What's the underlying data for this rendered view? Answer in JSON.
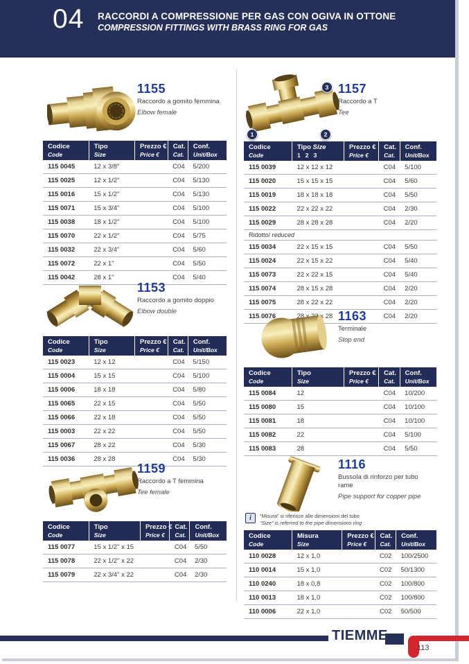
{
  "colors": {
    "navy": "#262f58",
    "product_number_blue": "#1e3c96",
    "logo_red": "#d2252d",
    "brass": "#cfae58"
  },
  "header": {
    "chapter_number": "04",
    "title": "RACCORDI A COMPRESSIONE PER GAS CON OGIVA IN OTTONE",
    "subtitle": "COMPRESSION FITTINGS WITH BRASS RING FOR GAS"
  },
  "sections": {
    "s1155": {
      "number": "1155",
      "name_it": "Raccordo a gomito femmina",
      "name_en": "Elbow female",
      "head": [
        {
          "l1": "Codice",
          "l2": "Code"
        },
        {
          "l1": "Tipo",
          "l2": "Size"
        },
        {
          "l1": "Prezzo €",
          "l2": "Price €"
        },
        {
          "l1": "Cat.",
          "l2": "Cat."
        },
        {
          "l1": "Conf.",
          "l2": "Unit/Box"
        }
      ],
      "rows": [
        [
          "115 0045",
          "12 x 3/8\"",
          "",
          "C04",
          "5/200"
        ],
        [
          "115 0025",
          "12 x 1/2\"",
          "",
          "C04",
          "5/130"
        ],
        [
          "115 0016",
          "15 x 1/2\"",
          "",
          "C04",
          "5/130"
        ],
        [
          "115 0071",
          "15 x 3/4\"",
          "",
          "C04",
          "5/100"
        ],
        [
          "115 0038",
          "18 x 1/2\"",
          "",
          "C04",
          "5/100"
        ],
        [
          "115 0070",
          "22 x 1/2\"",
          "",
          "C04",
          "5/75"
        ],
        [
          "115 0032",
          "22 x 3/4\"",
          "",
          "C04",
          "5/60"
        ],
        [
          "115 0072",
          "22 x 1\"",
          "",
          "C04",
          "5/50"
        ],
        [
          "115 0042",
          "28 x 1\"",
          "",
          "C04",
          "5/40"
        ]
      ]
    },
    "s1157": {
      "number": "1157",
      "name_it": "Raccordo a T",
      "name_en": "Tee",
      "callouts": [
        "1",
        "2",
        "3"
      ],
      "head": [
        {
          "l1": "Codice",
          "l2": "Code"
        },
        {
          "l1": "Tipo",
          "l1i": "Size",
          "l2": "1   2   3",
          "l2b": true
        },
        {
          "l1": "Prezzo €",
          "l2": "Price €"
        },
        {
          "l1": "Cat.",
          "l2": "Cat."
        },
        {
          "l1": "Conf.",
          "l2": "Unit/Box"
        }
      ],
      "rows": [
        [
          "115 0039",
          "12 x 12 x 12",
          "",
          "C04",
          "5/100"
        ],
        [
          "115 0020",
          "15 x 15 x 15",
          "",
          "C04",
          "5/60"
        ],
        [
          "115 0019",
          "18 x 18 x 18",
          "",
          "C04",
          "5/50"
        ],
        [
          "115 0022",
          "22 x 22 x 22",
          "",
          "C04",
          "2/30"
        ],
        [
          "115 0029",
          "28 x 28 x 28",
          "",
          "C04",
          "2/20"
        ],
        {
          "label": "Ridotto/",
          "label_i": "reduced"
        },
        [
          "115 0034",
          "22 x 15 x 15",
          "",
          "C04",
          "5/50"
        ],
        [
          "115 0024",
          "22 x 15 x 22",
          "",
          "C04",
          "5/40"
        ],
        [
          "115 0073",
          "22 x 22 x 15",
          "",
          "C04",
          "5/40"
        ],
        [
          "115 0074",
          "28 x 15 x 28",
          "",
          "C04",
          "2/20"
        ],
        [
          "115 0075",
          "28 x 22 x 22",
          "",
          "C04",
          "2/20"
        ],
        [
          "115 0076",
          "28 x 22 x 28",
          "",
          "C04",
          "2/20"
        ]
      ]
    },
    "s1153": {
      "number": "1153",
      "name_it": "Raccordo a gomito doppio",
      "name_en": "Elbow double",
      "head": [
        {
          "l1": "Codice",
          "l2": "Code"
        },
        {
          "l1": "Tipo",
          "l2": "Size"
        },
        {
          "l1": "Prezzo €",
          "l2": "Price €"
        },
        {
          "l1": "Cat.",
          "l2": "Cat."
        },
        {
          "l1": "Conf.",
          "l2": "Unit/Box"
        }
      ],
      "rows": [
        [
          "115 0023",
          "12 x 12",
          "",
          "C04",
          "5/150"
        ],
        [
          "115 0004",
          "15 x 15",
          "",
          "C04",
          "5/100"
        ],
        [
          "115 0006",
          "18 x 18",
          "",
          "C04",
          "5/80"
        ],
        [
          "115 0065",
          "22 x 15",
          "",
          "C04",
          "5/50"
        ],
        [
          "115 0066",
          "22 x 18",
          "",
          "C04",
          "5/50"
        ],
        [
          "115 0003",
          "22 x 22",
          "",
          "C04",
          "5/50"
        ],
        [
          "115 0067",
          "28 x 22",
          "",
          "C04",
          "5/30"
        ],
        [
          "115 0036",
          "28 x 28",
          "",
          "C04",
          "5/30"
        ]
      ]
    },
    "s1163": {
      "number": "1163",
      "name_it": "Terminale",
      "name_en": "Stop end",
      "head": [
        {
          "l1": "Codice",
          "l2": "Code"
        },
        {
          "l1": "Tipo",
          "l2": "Size"
        },
        {
          "l1": "Prezzo €",
          "l2": "Price €"
        },
        {
          "l1": "Cat.",
          "l2": "Cat."
        },
        {
          "l1": "Conf.",
          "l2": "Unit/Box"
        }
      ],
      "rows": [
        [
          "115 0084",
          "12",
          "",
          "C04",
          "10/200"
        ],
        [
          "115 0080",
          "15",
          "",
          "C04",
          "10/100"
        ],
        [
          "115 0081",
          "18",
          "",
          "C04",
          "10/100"
        ],
        [
          "115 0082",
          "22",
          "",
          "C04",
          "5/100"
        ],
        [
          "115 0083",
          "28",
          "",
          "C04",
          "5/50"
        ]
      ]
    },
    "s1159": {
      "number": "1159",
      "name_it": "Raccordo a T femmina",
      "name_en": "Tee female",
      "head": [
        {
          "l1": "Codice",
          "l2": "Code"
        },
        {
          "l1": "Tipo",
          "l2": "Size"
        },
        {
          "l1": "Prezzo €",
          "l2": "Price €"
        },
        {
          "l1": "Cat.",
          "l2": "Cat."
        },
        {
          "l1": "Conf.",
          "l2": "Unit/Box"
        }
      ],
      "rows": [
        [
          "115 0077",
          "15 x 1/2\" x 15",
          "",
          "C04",
          "5/50"
        ],
        [
          "115 0078",
          "22 x 1/2\" x 22",
          "",
          "C04",
          "2/30"
        ],
        [
          "115 0079",
          "22 x 3/4\" x 22",
          "",
          "C04",
          "2/30"
        ]
      ]
    },
    "s1116": {
      "number": "1116",
      "name_it": "Bussola di rinforzo per tubo rame",
      "name_en": "Pipe support for copper pipe",
      "note_it": "“Misura” si riferisce alle dimensioni del tubo",
      "note_en": "“Size” is referred to the pipe dimensions ring",
      "info_icon": "i",
      "head": [
        {
          "l1": "Codice",
          "l2": "Code"
        },
        {
          "l1": "Misura",
          "l2": "Size"
        },
        {
          "l1": "Prezzo €",
          "l2": "Price €"
        },
        {
          "l1": "Cat.",
          "l2": "Cat."
        },
        {
          "l1": "Conf.",
          "l2": "Unit/Box"
        }
      ],
      "rows": [
        [
          "110 0028",
          "12 x 1,0",
          "",
          "C02",
          "100/2500"
        ],
        [
          "110 0014",
          "15 x 1,0",
          "",
          "C02",
          "50/1300"
        ],
        [
          "110 0240",
          "18 x 0,8",
          "",
          "C02",
          "100/800"
        ],
        [
          "110 0013",
          "18 x 1,0",
          "",
          "C02",
          "100/800"
        ],
        [
          "110 0006",
          "22 x 1,0",
          "",
          "C02",
          "50/500"
        ]
      ]
    }
  },
  "footer": {
    "brand": "TIEMME",
    "page_number": "113"
  }
}
